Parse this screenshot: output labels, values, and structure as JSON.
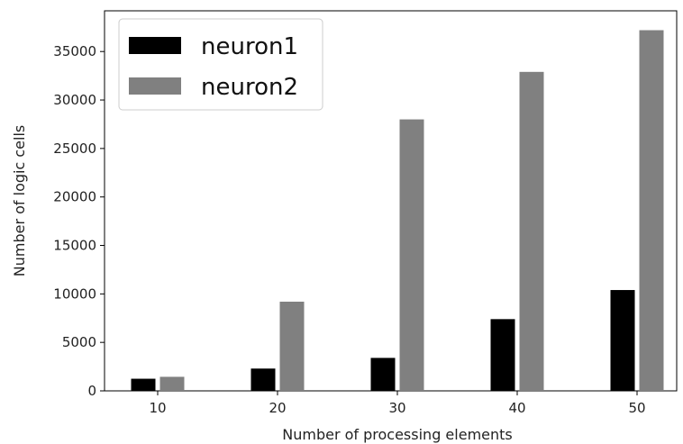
{
  "chart_data": {
    "type": "bar",
    "categories": [
      "10",
      "20",
      "30",
      "40",
      "50"
    ],
    "series": [
      {
        "name": "neuron1",
        "color": "#000000",
        "values": [
          1250,
          2300,
          3400,
          7400,
          10400
        ]
      },
      {
        "name": "neuron2",
        "color": "#808080",
        "values": [
          1450,
          9200,
          28000,
          32900,
          37200
        ]
      }
    ],
    "xlabel": "Number of processing elements",
    "ylabel": "Number of logic cells",
    "ylim": [
      0,
      39200
    ],
    "yticks": [
      0,
      5000,
      10000,
      15000,
      20000,
      25000,
      30000,
      35000
    ],
    "grid": false,
    "legend_position": "top-left"
  }
}
